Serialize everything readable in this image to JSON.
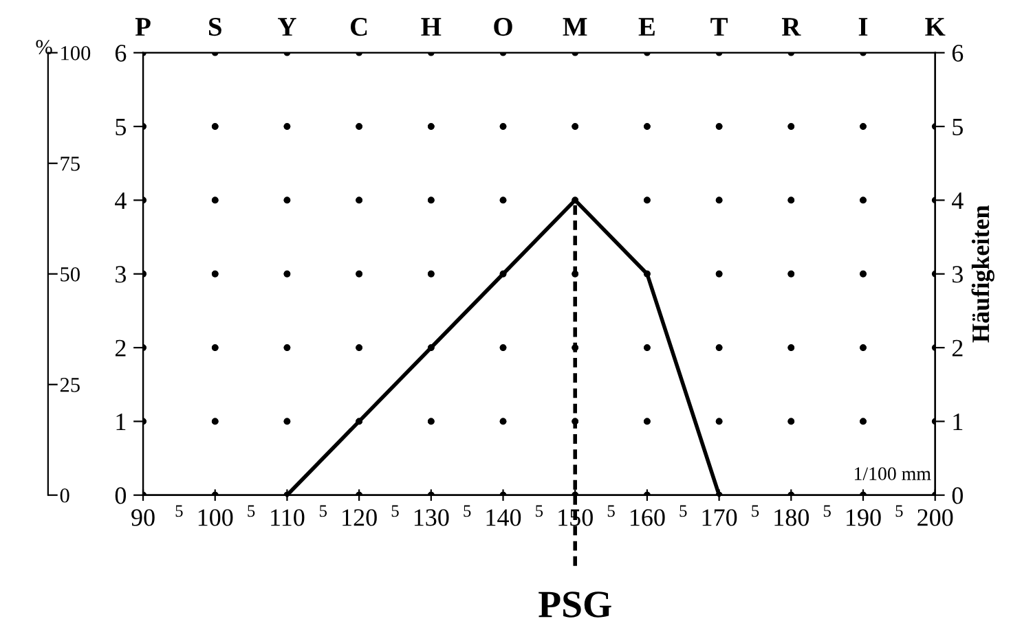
{
  "chart_data": {
    "type": "line",
    "y2label": "Häufigkeiten",
    "y3label": "%",
    "x": [
      110,
      120,
      130,
      140,
      150,
      160,
      170
    ],
    "series": [
      {
        "color": "#000000",
        "values": [
          0,
          1,
          2,
          3,
          4,
          3,
          0
        ]
      }
    ],
    "xlim": [
      90,
      200
    ],
    "xticks": [
      90,
      100,
      110,
      120,
      130,
      140,
      150,
      160,
      170,
      180,
      190,
      200
    ],
    "ylim": [
      0,
      6
    ],
    "yticks": [
      0,
      1,
      2,
      3,
      4,
      5,
      6
    ],
    "y2lim": [
      0,
      6
    ],
    "y2ticks": [
      0,
      1,
      2,
      3,
      4,
      5,
      6
    ],
    "y3lim": [
      0,
      100
    ],
    "y3ticks": [
      0,
      25,
      50,
      75,
      100
    ],
    "ref_lines": [
      {
        "axis": "x",
        "value": 150,
        "label": "PSG",
        "line_style": "dashed",
        "color": "#000000"
      }
    ],
    "annotations": [
      "P",
      "S",
      "Y",
      "C",
      "H",
      "O",
      "M",
      "E",
      "T",
      "R",
      "I",
      "K",
      "5",
      "5",
      "5",
      "5",
      "5",
      "5",
      "5",
      "5",
      "5",
      "5",
      "5",
      "1/100 mm"
    ],
    "grid": true,
    "line_style": "solid",
    "legend": false
  }
}
